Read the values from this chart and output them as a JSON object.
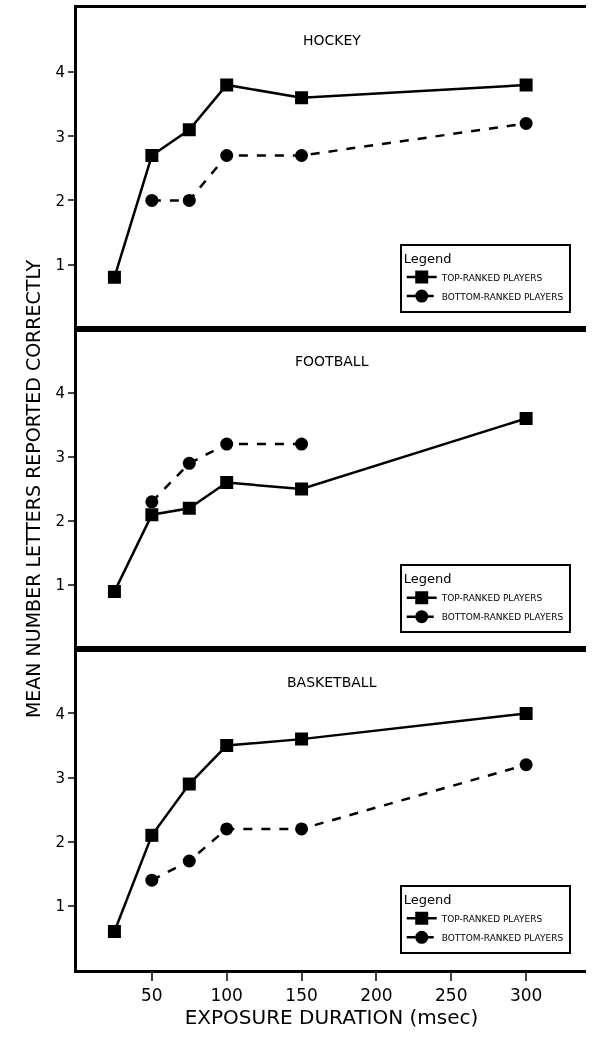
{
  "chart_data": [
    {
      "type": "line",
      "title": "HOCKEY",
      "x": [
        25,
        50,
        75,
        100,
        150,
        300
      ],
      "xlim": [
        0,
        340
      ],
      "xticks": [
        50,
        100,
        150,
        200,
        250,
        300
      ],
      "ylim": [
        0,
        5
      ],
      "yticks": [
        1,
        2,
        3,
        4
      ],
      "tick_labels": "y",
      "grid": false,
      "legend": "bottom right",
      "legend_title": "Legend",
      "series": [
        {
          "name": "TOP-RANKED PLAYERS",
          "color": "#000000",
          "marker": "square",
          "line_style": "solid",
          "values": [
            0.8,
            2.7,
            3.1,
            3.8,
            3.6,
            3.8
          ]
        },
        {
          "name": "BOTTOM-RANKED PLAYERS",
          "color": "#000000",
          "marker": "circle",
          "line_style": "dashed",
          "values": [
            null,
            2.0,
            2.0,
            2.7,
            2.7,
            3.2
          ]
        }
      ]
    },
    {
      "type": "line",
      "title": "FOOTBALL",
      "ylabel": "MEAN NUMBER LETTERS REPORTED CORRECTLY",
      "x": [
        25,
        50,
        75,
        100,
        150,
        300
      ],
      "xlim": [
        0,
        340
      ],
      "xticks": [
        50,
        100,
        150,
        200,
        250,
        300
      ],
      "ylim": [
        0,
        5
      ],
      "yticks": [
        1,
        2,
        3,
        4
      ],
      "tick_labels": "y",
      "grid": false,
      "legend": "bottom right",
      "legend_title": "Legend",
      "series": [
        {
          "name": "TOP-RANKED PLAYERS",
          "color": "#000000",
          "marker": "square",
          "line_style": "solid",
          "values": [
            0.9,
            2.1,
            2.2,
            2.6,
            2.5,
            3.6
          ]
        },
        {
          "name": "BOTTOM-RANKED PLAYERS",
          "color": "#000000",
          "marker": "circle",
          "line_style": "dashed",
          "values": [
            null,
            2.3,
            2.9,
            3.2,
            3.2,
            null
          ]
        }
      ]
    },
    {
      "type": "line",
      "title": "BASKETBALL",
      "xlabel": "EXPOSURE DURATION (msec)",
      "x": [
        25,
        50,
        75,
        100,
        150,
        300
      ],
      "xlim": [
        0,
        340
      ],
      "xticks": [
        50,
        100,
        150,
        200,
        250,
        300
      ],
      "ylim": [
        0,
        5
      ],
      "yticks": [
        1,
        2,
        3,
        4
      ],
      "grid": false,
      "legend": "bottom right",
      "legend_title": "Legend",
      "series": [
        {
          "name": "TOP-RANKED PLAYERS",
          "color": "#000000",
          "marker": "square",
          "line_style": "solid",
          "values": [
            0.6,
            2.1,
            2.9,
            3.5,
            3.6,
            4.0
          ]
        },
        {
          "name": "BOTTOM-RANKED PLAYERS",
          "color": "#000000",
          "marker": "circle",
          "line_style": "dashed",
          "values": [
            null,
            1.4,
            1.7,
            2.2,
            2.2,
            3.2
          ]
        }
      ]
    }
  ]
}
